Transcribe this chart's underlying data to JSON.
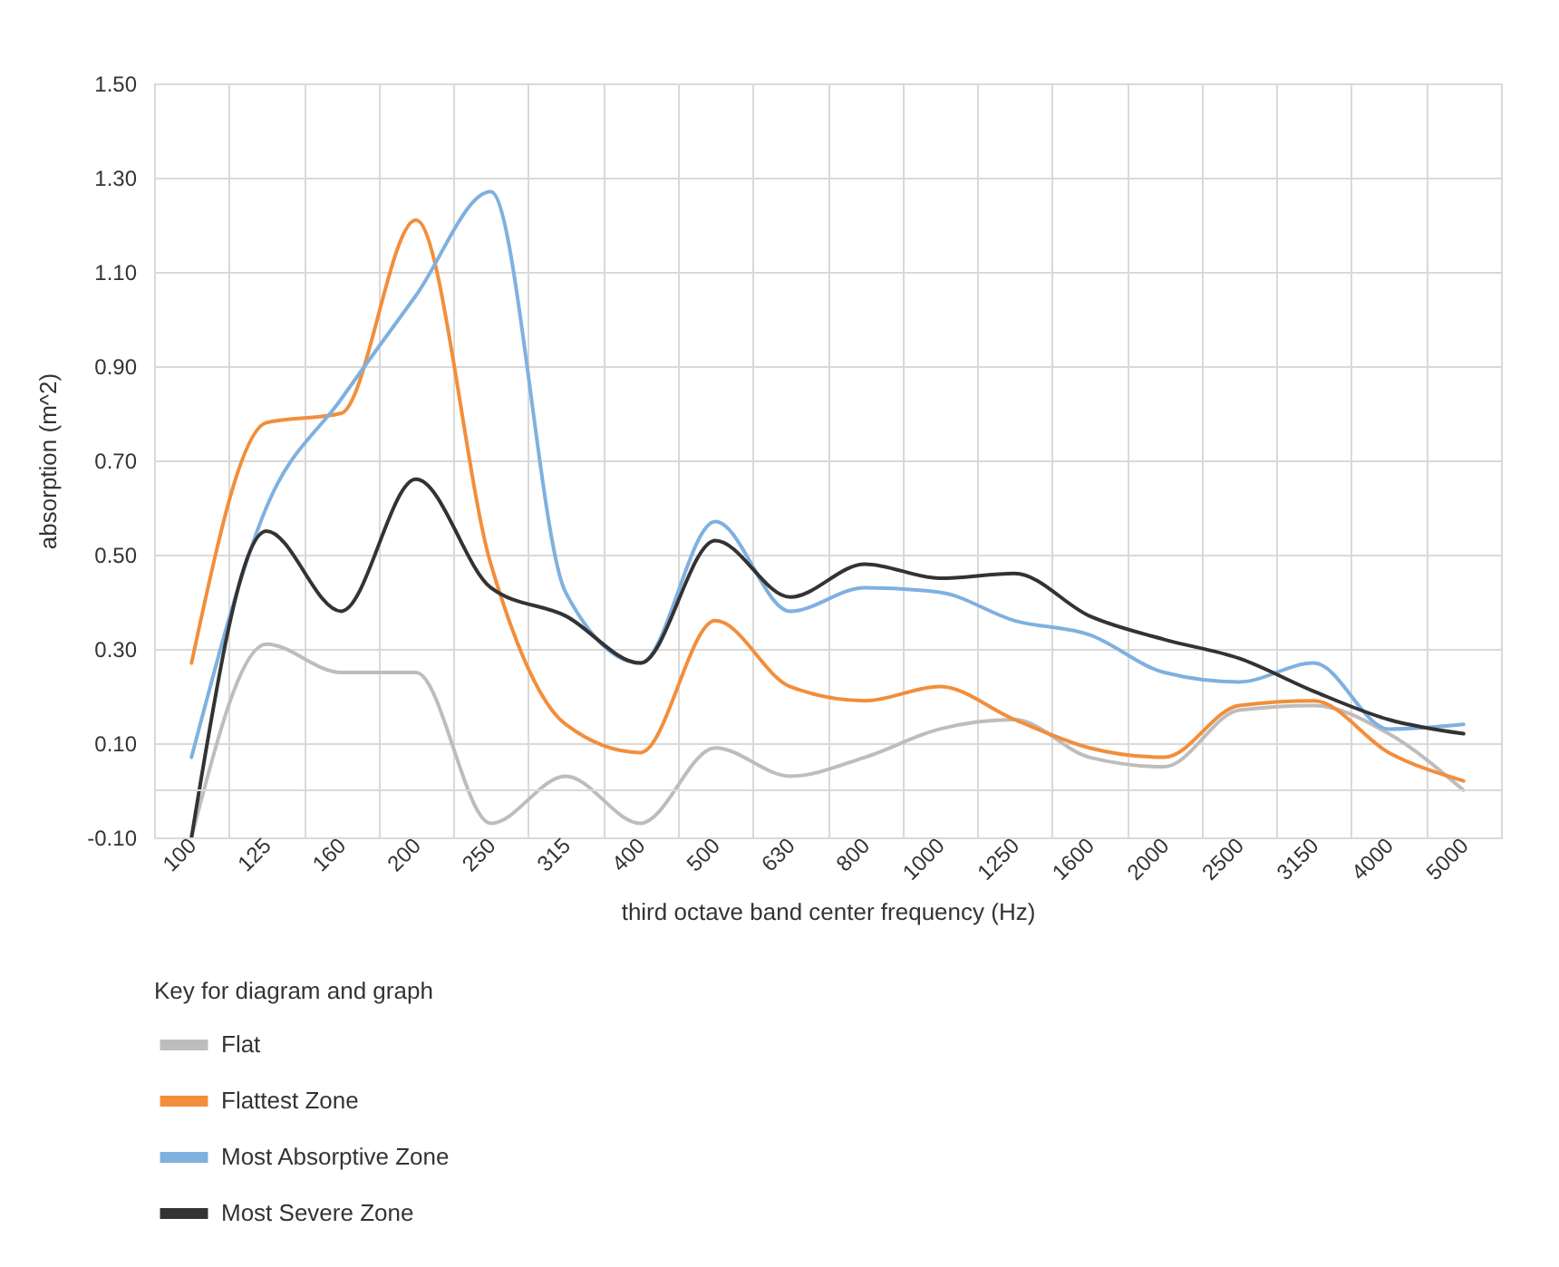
{
  "chart_data": {
    "type": "line",
    "xlabel": "third octave band center frequency (Hz)",
    "ylabel": "absorption (m^2)",
    "legend_title": "Key for diagram and graph",
    "categories": [
      "100",
      "125",
      "160",
      "200",
      "250",
      "315",
      "400",
      "500",
      "630",
      "800",
      "1000",
      "1250",
      "1600",
      "2000",
      "2500",
      "3150",
      "4000",
      "5000"
    ],
    "series": [
      {
        "name": "Flat",
        "color": "#bdbdbd",
        "values": [
          -0.1,
          0.31,
          0.25,
          0.25,
          -0.07,
          0.03,
          -0.07,
          0.09,
          0.03,
          0.07,
          0.13,
          0.15,
          0.07,
          0.05,
          0.17,
          0.18,
          0.12,
          0.0
        ]
      },
      {
        "name": "Flattest Zone",
        "color": "#f28e3b",
        "values": [
          0.27,
          0.78,
          0.8,
          1.21,
          0.48,
          0.14,
          0.08,
          0.36,
          0.22,
          0.19,
          0.22,
          0.15,
          0.09,
          0.07,
          0.18,
          0.19,
          0.08,
          0.02
        ]
      },
      {
        "name": "Most Absorptive Zone",
        "color": "#7fb0e0",
        "values": [
          0.07,
          0.6,
          0.83,
          1.05,
          1.27,
          0.42,
          0.27,
          0.57,
          0.38,
          0.43,
          0.42,
          0.36,
          0.33,
          0.25,
          0.23,
          0.27,
          0.13,
          0.14
        ]
      },
      {
        "name": "Most Severe Zone",
        "color": "#333333",
        "values": [
          -0.1,
          0.55,
          0.38,
          0.66,
          0.43,
          0.37,
          0.27,
          0.53,
          0.41,
          0.48,
          0.45,
          0.46,
          0.37,
          0.32,
          0.28,
          0.21,
          0.15,
          0.12
        ]
      }
    ],
    "ylim": [
      -0.1,
      1.5
    ],
    "yticks": [
      {
        "value": -0.1,
        "label": "-0.10"
      },
      {
        "value": 0.1,
        "label": "0.10"
      },
      {
        "value": 0.3,
        "label": "0.30"
      },
      {
        "value": 0.5,
        "label": "0.50"
      },
      {
        "value": 0.7,
        "label": "0.70"
      },
      {
        "value": 0.9,
        "label": "0.90"
      },
      {
        "value": 1.1,
        "label": "1.10"
      },
      {
        "value": 1.3,
        "label": "1.30"
      },
      {
        "value": 1.5,
        "label": "1.50"
      }
    ],
    "ref_lines": [
      {
        "axis": "y",
        "value": 0,
        "label": null,
        "color": "#d9d9d9"
      }
    ],
    "grid": true,
    "legend": "bottom",
    "line_style": "solid"
  }
}
